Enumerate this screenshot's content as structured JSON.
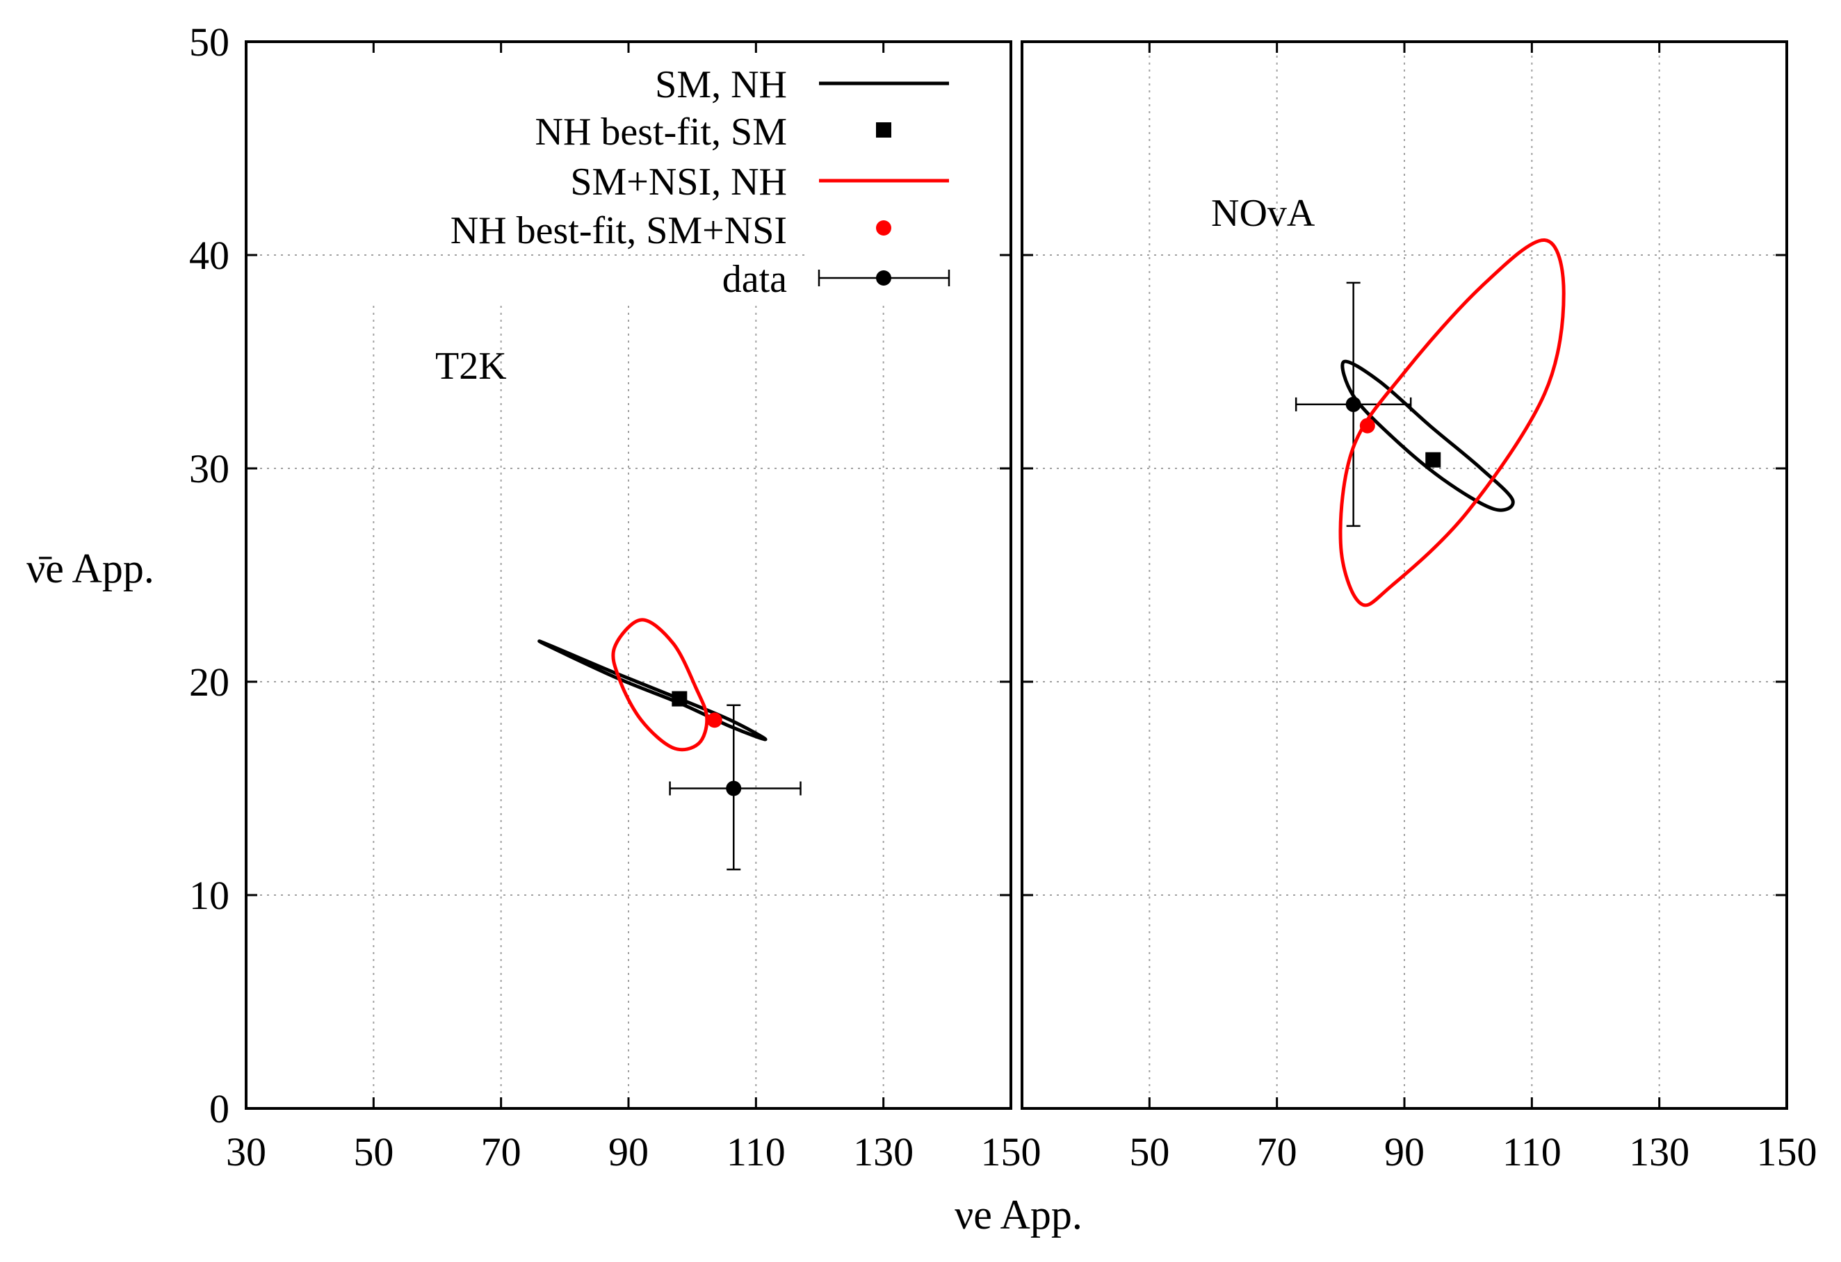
{
  "chart_data": {
    "type": "scatter",
    "ylabel": "ν̄e App.",
    "xlabel": "νe App.",
    "ylim": [
      0,
      50
    ],
    "yticks": [
      "0",
      "10",
      "20",
      "30",
      "40",
      "50"
    ],
    "colors": {
      "black": "#000000",
      "red": "#ff0000"
    },
    "legend": {
      "placement": "top-right of left panel",
      "entries": [
        {
          "label": "SM, NH",
          "style": "line",
          "color": "#000000"
        },
        {
          "label": "NH best-fit, SM",
          "style": "square",
          "color": "#000000"
        },
        {
          "label": "SM+NSI, NH",
          "style": "line",
          "color": "#ff0000"
        },
        {
          "label": "NH best-fit, SM+NSI",
          "style": "circle",
          "color": "#ff0000"
        },
        {
          "label": "data",
          "style": "errorbar",
          "color": "#000000"
        }
      ]
    },
    "panels": [
      {
        "name": "T2K",
        "label": "T2K",
        "xlim": [
          30,
          150
        ],
        "xticks": [
          "30",
          "50",
          "70",
          "90",
          "110",
          "130",
          "150"
        ],
        "sm_ellipse": {
          "points": [
            [
              76.0,
              21.9
            ],
            [
              88.0,
              20.4
            ],
            [
              98.0,
              19.2
            ],
            [
              106.0,
              18.2
            ],
            [
              111.5,
              17.3
            ],
            [
              106.0,
              17.9
            ],
            [
              98.0,
              19.0
            ],
            [
              88.0,
              20.2
            ],
            [
              76.0,
              21.9
            ]
          ]
        },
        "nsi_ellipse": {
          "points": [
            [
              92.0,
              22.9
            ],
            [
              97.0,
              21.8
            ],
            [
              100.6,
              19.7
            ],
            [
              102.3,
              18.3
            ],
            [
              101.0,
              17.1
            ],
            [
              97.0,
              16.9
            ],
            [
              92.0,
              18.2
            ],
            [
              88.6,
              20.1
            ],
            [
              87.8,
              21.6
            ],
            [
              92.0,
              22.9
            ]
          ]
        },
        "sm_bestfit": {
          "x": 98.0,
          "y": 19.2
        },
        "nsi_bestfit": {
          "x": 103.5,
          "y": 18.2
        },
        "data": {
          "x": 106.5,
          "y": 15.0,
          "xerr": [
            96.5,
            117.0
          ],
          "yerr": [
            11.2,
            18.9
          ]
        }
      },
      {
        "name": "NOvA",
        "label": "NOvA",
        "xlim": [
          30,
          150
        ],
        "xticks": [
          "50",
          "70",
          "90",
          "110",
          "130",
          "150"
        ],
        "sm_ellipse": {
          "points": [
            [
              80.5,
              35.0
            ],
            [
              86.0,
              34.1
            ],
            [
              94.0,
              32.0
            ],
            [
              102.0,
              30.0
            ],
            [
              107.0,
              28.5
            ],
            [
              104.0,
              28.1
            ],
            [
              96.0,
              29.5
            ],
            [
              88.0,
              31.5
            ],
            [
              82.0,
              33.4
            ],
            [
              80.5,
              35.0
            ]
          ]
        },
        "nsi_ellipse": {
          "points": [
            [
              112.0,
              40.7
            ],
            [
              115.0,
              38.2
            ],
            [
              112.0,
              33.5
            ],
            [
              100.0,
              28.0
            ],
            [
              88.0,
              24.5
            ],
            [
              83.0,
              23.7
            ],
            [
              80.0,
              26.5
            ],
            [
              82.0,
              31.0
            ],
            [
              90.0,
              34.5
            ],
            [
              102.0,
              38.5
            ],
            [
              112.0,
              40.7
            ]
          ]
        },
        "sm_bestfit": {
          "x": 94.5,
          "y": 30.4
        },
        "nsi_bestfit": {
          "x": 84.2,
          "y": 32.0
        },
        "data": {
          "x": 82.0,
          "y": 33.0,
          "xerr": [
            73.0,
            91.0
          ],
          "yerr": [
            27.3,
            38.7
          ]
        }
      }
    ]
  }
}
